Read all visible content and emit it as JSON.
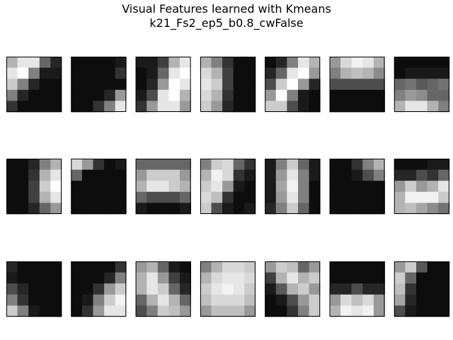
{
  "chart_data": {
    "type": "heatmap",
    "title_lines": [
      "Visual Features learned with Kmeans",
      "k21_Fs2_ep5_b0.8_cwFalse"
    ],
    "grid": false,
    "axes_visible": false,
    "colormap": "gray",
    "layout": {
      "rows": 3,
      "cols": 7
    },
    "patch_shape": [
      5,
      5
    ],
    "patches": [
      [
        [
          0.7,
          0.9,
          0.9,
          0.4,
          0.15
        ],
        [
          0.9,
          1.0,
          0.5,
          0.1,
          0.1
        ],
        [
          0.8,
          0.5,
          0.15,
          0.05,
          0.05
        ],
        [
          0.5,
          0.15,
          0.05,
          0.05,
          0.05
        ],
        [
          0.2,
          0.05,
          0.05,
          0.05,
          0.05
        ]
      ],
      [
        [
          0.05,
          0.05,
          0.05,
          0.05,
          0.1
        ],
        [
          0.05,
          0.05,
          0.05,
          0.05,
          0.2
        ],
        [
          0.05,
          0.05,
          0.05,
          0.05,
          0.05
        ],
        [
          0.05,
          0.05,
          0.05,
          0.15,
          0.6
        ],
        [
          0.05,
          0.05,
          0.2,
          0.5,
          0.9
        ]
      ],
      [
        [
          0.1,
          0.1,
          0.25,
          0.7,
          0.9
        ],
        [
          0.05,
          0.1,
          0.4,
          0.9,
          1.0
        ],
        [
          0.05,
          0.15,
          0.6,
          1.0,
          0.9
        ],
        [
          0.1,
          0.3,
          0.9,
          1.0,
          0.7
        ],
        [
          0.2,
          0.6,
          0.9,
          0.9,
          0.6
        ]
      ],
      [
        [
          0.7,
          0.5,
          0.2,
          0.05,
          0.05
        ],
        [
          0.85,
          0.7,
          0.25,
          0.05,
          0.05
        ],
        [
          0.9,
          0.8,
          0.25,
          0.05,
          0.05
        ],
        [
          0.85,
          0.7,
          0.2,
          0.05,
          0.05
        ],
        [
          0.8,
          0.6,
          0.15,
          0.05,
          0.05
        ]
      ],
      [
        [
          0.05,
          0.15,
          0.5,
          0.9,
          0.7
        ],
        [
          0.15,
          0.4,
          0.9,
          1.0,
          0.6
        ],
        [
          0.3,
          0.8,
          1.0,
          0.6,
          0.15
        ],
        [
          0.6,
          1.0,
          0.5,
          0.1,
          0.05
        ],
        [
          0.8,
          0.8,
          0.3,
          0.1,
          0.05
        ]
      ],
      [
        [
          0.6,
          0.85,
          0.95,
          0.9,
          0.7
        ],
        [
          0.5,
          0.7,
          0.75,
          0.7,
          0.55
        ],
        [
          0.3,
          0.3,
          0.3,
          0.3,
          0.3
        ],
        [
          0.05,
          0.05,
          0.05,
          0.05,
          0.05
        ],
        [
          0.05,
          0.05,
          0.05,
          0.05,
          0.05
        ]
      ],
      [
        [
          0.05,
          0.05,
          0.05,
          0.05,
          0.05
        ],
        [
          0.05,
          0.1,
          0.1,
          0.1,
          0.1
        ],
        [
          0.4,
          0.45,
          0.35,
          0.4,
          0.45
        ],
        [
          0.5,
          0.6,
          0.55,
          0.4,
          0.4
        ],
        [
          0.7,
          0.9,
          0.9,
          0.7,
          0.5
        ]
      ],
      [
        [
          0.05,
          0.05,
          0.15,
          0.5,
          0.7
        ],
        [
          0.05,
          0.05,
          0.2,
          0.7,
          0.9
        ],
        [
          0.05,
          0.05,
          0.25,
          0.8,
          1.0
        ],
        [
          0.05,
          0.05,
          0.25,
          0.7,
          0.9
        ],
        [
          0.05,
          0.05,
          0.15,
          0.4,
          0.6
        ]
      ],
      [
        [
          0.85,
          0.6,
          0.2,
          0.05,
          0.1
        ],
        [
          0.4,
          0.05,
          0.05,
          0.05,
          0.05
        ],
        [
          0.05,
          0.05,
          0.05,
          0.05,
          0.05
        ],
        [
          0.05,
          0.05,
          0.05,
          0.05,
          0.05
        ],
        [
          0.05,
          0.05,
          0.05,
          0.05,
          0.05
        ]
      ],
      [
        [
          0.4,
          0.4,
          0.4,
          0.4,
          0.4
        ],
        [
          0.6,
          0.8,
          0.8,
          0.8,
          0.6
        ],
        [
          0.7,
          0.9,
          0.9,
          0.8,
          0.7
        ],
        [
          0.4,
          0.3,
          0.3,
          0.3,
          0.4
        ],
        [
          0.1,
          0.05,
          0.05,
          0.05,
          0.1
        ]
      ],
      [
        [
          0.5,
          0.8,
          0.85,
          0.4,
          0.2
        ],
        [
          0.7,
          0.95,
          0.85,
          0.2,
          0.1
        ],
        [
          0.8,
          0.9,
          0.6,
          0.1,
          0.05
        ],
        [
          0.85,
          0.75,
          0.2,
          0.05,
          0.05
        ],
        [
          0.8,
          0.3,
          0.1,
          0.05,
          0.1
        ]
      ],
      [
        [
          0.1,
          0.5,
          0.8,
          0.4,
          0.1
        ],
        [
          0.1,
          0.6,
          0.9,
          0.5,
          0.1
        ],
        [
          0.1,
          0.65,
          0.95,
          0.5,
          0.05
        ],
        [
          0.1,
          0.6,
          0.9,
          0.5,
          0.05
        ],
        [
          0.15,
          0.5,
          0.8,
          0.4,
          0.05
        ]
      ],
      [
        [
          0.05,
          0.05,
          0.2,
          0.5,
          0.7
        ],
        [
          0.05,
          0.05,
          0.1,
          0.3,
          0.5
        ],
        [
          0.05,
          0.05,
          0.05,
          0.05,
          0.05
        ],
        [
          0.05,
          0.05,
          0.05,
          0.05,
          0.05
        ],
        [
          0.05,
          0.05,
          0.05,
          0.05,
          0.05
        ]
      ],
      [
        [
          0.05,
          0.05,
          0.05,
          0.1,
          0.1
        ],
        [
          0.15,
          0.15,
          0.3,
          0.2,
          0.4
        ],
        [
          0.6,
          0.8,
          0.6,
          0.7,
          0.9
        ],
        [
          0.7,
          0.95,
          0.95,
          0.95,
          0.8
        ],
        [
          0.7,
          0.75,
          0.65,
          0.55,
          0.45
        ]
      ],
      [
        [
          0.15,
          0.05,
          0.05,
          0.05,
          0.05
        ],
        [
          0.1,
          0.05,
          0.05,
          0.05,
          0.05
        ],
        [
          0.3,
          0.15,
          0.05,
          0.05,
          0.05
        ],
        [
          0.5,
          0.2,
          0.05,
          0.05,
          0.05
        ],
        [
          0.8,
          0.5,
          0.1,
          0.05,
          0.05
        ]
      ],
      [
        [
          0.05,
          0.05,
          0.05,
          0.05,
          0.2
        ],
        [
          0.05,
          0.05,
          0.05,
          0.15,
          0.5
        ],
        [
          0.05,
          0.05,
          0.2,
          0.6,
          0.8
        ],
        [
          0.05,
          0.1,
          0.5,
          0.8,
          0.95
        ],
        [
          0.05,
          0.2,
          0.6,
          0.9,
          0.9
        ]
      ],
      [
        [
          0.6,
          0.7,
          0.4,
          0.1,
          0.05
        ],
        [
          0.7,
          0.9,
          0.6,
          0.25,
          0.1
        ],
        [
          0.7,
          0.9,
          0.8,
          0.4,
          0.15
        ],
        [
          0.4,
          0.7,
          0.9,
          0.7,
          0.4
        ],
        [
          0.3,
          0.5,
          0.8,
          0.75,
          0.6
        ]
      ],
      [
        [
          0.5,
          0.7,
          0.85,
          0.85,
          0.8
        ],
        [
          0.7,
          0.85,
          0.9,
          0.9,
          0.85
        ],
        [
          0.8,
          0.9,
          0.95,
          0.9,
          0.8
        ],
        [
          0.75,
          0.85,
          0.85,
          0.85,
          0.75
        ],
        [
          0.6,
          0.75,
          0.75,
          0.75,
          0.6
        ]
      ],
      [
        [
          0.6,
          0.8,
          0.75,
          0.4,
          0.6
        ],
        [
          0.25,
          0.7,
          0.9,
          0.7,
          0.8
        ],
        [
          0.1,
          0.35,
          0.7,
          0.8,
          0.6
        ],
        [
          0.05,
          0.1,
          0.3,
          0.6,
          0.8
        ],
        [
          0.05,
          0.05,
          0.2,
          0.5,
          0.8
        ]
      ],
      [
        [
          0.05,
          0.05,
          0.05,
          0.05,
          0.05
        ],
        [
          0.05,
          0.05,
          0.05,
          0.05,
          0.05
        ],
        [
          0.15,
          0.15,
          0.3,
          0.15,
          0.15
        ],
        [
          0.6,
          0.85,
          0.75,
          0.85,
          0.6
        ],
        [
          0.7,
          0.95,
          0.9,
          0.95,
          0.6
        ]
      ],
      [
        [
          0.6,
          0.8,
          0.35,
          0.05,
          0.05
        ],
        [
          0.8,
          0.4,
          0.05,
          0.05,
          0.05
        ],
        [
          0.75,
          0.2,
          0.05,
          0.05,
          0.05
        ],
        [
          0.65,
          0.15,
          0.05,
          0.05,
          0.05
        ],
        [
          0.3,
          0.1,
          0.05,
          0.05,
          0.05
        ]
      ]
    ]
  }
}
